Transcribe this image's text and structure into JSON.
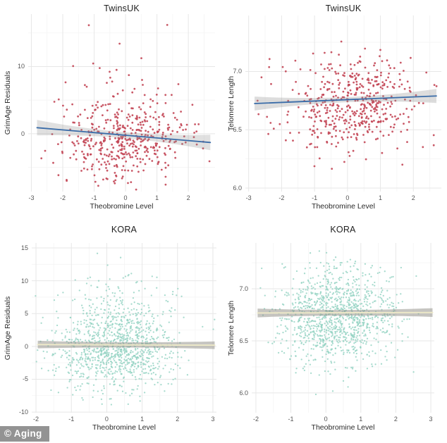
{
  "figure": {
    "background": "#ffffff",
    "grid_major": "#e7e7e7",
    "grid_minor": "#f4f4f4",
    "tick_text_color": "#555555",
    "watermark": {
      "label": "© Aging",
      "bg": "#808080",
      "fg": "#ffffff"
    }
  },
  "chart_data": [
    {
      "id": "twinsuk-grimage",
      "type": "scatter",
      "title": "TwinsUK",
      "xlabel": "Theobromine Level",
      "ylabel": "GrimAge Residuals",
      "xlim": [
        -3.1,
        2.85
      ],
      "ylim": [
        -8.6,
        17.8
      ],
      "xticks": [
        [
          -3,
          "-3"
        ],
        [
          -2,
          "-2"
        ],
        [
          -1,
          "-1"
        ],
        [
          0,
          "0"
        ],
        [
          1,
          "1"
        ],
        [
          2,
          "2"
        ]
      ],
      "yticks": [
        [
          0,
          "0"
        ],
        [
          10,
          "10"
        ]
      ],
      "grid": true,
      "points": {
        "n": 470,
        "seed": 7,
        "color": "#c14252",
        "radius": 1.4,
        "opacity": 0.88,
        "x_mean": 0.0,
        "x_sd": 1.02,
        "x_min": -2.92,
        "x_max": 2.72,
        "y_mean": -1.0,
        "y_sd": 2.9,
        "y_min": -8.3,
        "y_max": 17.4,
        "outlier_frac": 0.13,
        "outlier_mean": 6.0,
        "outlier_sd": 4.2
      },
      "regression": {
        "x0": -2.82,
        "y0": 0.9,
        "x1": 2.7,
        "y1": -1.3,
        "line_color": "#3a6ca8",
        "line_width": 1.8,
        "band_color": "#8f8f8f",
        "band_opacity": 0.28,
        "band_mid": 0.45,
        "band_end": 1.15
      }
    },
    {
      "id": "twinsuk-telomere",
      "type": "scatter",
      "title": "TwinsUK",
      "xlabel": "Theobromine Level",
      "ylabel": "Telomere Length",
      "xlim": [
        -3.1,
        2.85
      ],
      "ylim": [
        5.97,
        7.48
      ],
      "xticks": [
        [
          -3,
          "-3"
        ],
        [
          -2,
          "-2"
        ],
        [
          -1,
          "-1"
        ],
        [
          0,
          "0"
        ],
        [
          1,
          "1"
        ],
        [
          2,
          "2"
        ]
      ],
      "yticks": [
        [
          6.0,
          "6.0"
        ],
        [
          6.5,
          "6.5"
        ],
        [
          7.0,
          "7.0"
        ]
      ],
      "grid": true,
      "points": {
        "n": 480,
        "seed": 13,
        "color": "#c14252",
        "radius": 1.4,
        "opacity": 0.88,
        "x_mean": 0.0,
        "x_sd": 1.02,
        "x_min": -2.92,
        "x_max": 2.72,
        "y_mean": 6.72,
        "y_sd": 0.2,
        "y_min": 5.99,
        "y_max": 7.43,
        "outlier_frac": 0,
        "outlier_mean": 0,
        "outlier_sd": 1
      },
      "regression": {
        "x0": -2.82,
        "y0": 6.725,
        "x1": 2.7,
        "y1": 6.79,
        "line_color": "#3a6ca8",
        "line_width": 1.8,
        "band_color": "#8f8f8f",
        "band_opacity": 0.3,
        "band_mid": 0.022,
        "band_end": 0.06
      }
    },
    {
      "id": "kora-grimage",
      "type": "scatter",
      "title": "KORA",
      "xlabel": "Theobromine Level",
      "ylabel": "GrimAge Residuals",
      "xlim": [
        -2.12,
        3.1
      ],
      "ylim": [
        -10.1,
        15.75
      ],
      "xticks": [
        [
          -2,
          "-2"
        ],
        [
          -1,
          "-1"
        ],
        [
          0,
          "0"
        ],
        [
          1,
          "1"
        ],
        [
          2,
          "2"
        ],
        [
          3,
          "3"
        ]
      ],
      "yticks": [
        [
          -10,
          "-10"
        ],
        [
          -5,
          "-5"
        ],
        [
          0,
          "0"
        ],
        [
          5,
          "5"
        ],
        [
          10,
          "10"
        ],
        [
          15,
          "15"
        ]
      ],
      "grid": true,
      "points": {
        "n": 1150,
        "seed": 21,
        "color": "#92d2c2",
        "radius": 1.15,
        "opacity": 0.8,
        "x_mean": 0.28,
        "x_sd": 0.85,
        "x_min": -2.05,
        "x_max": 3.05,
        "y_mean": -0.4,
        "y_sd": 3.1,
        "y_min": -8.9,
        "y_max": 15.3,
        "outlier_frac": 0.12,
        "outlier_mean": 6.5,
        "outlier_sd": 3.4
      },
      "regression": {
        "x0": -1.95,
        "y0": 0.28,
        "x1": 3.05,
        "y1": 0.18,
        "line_color": "#ece8c8",
        "line_width": 2,
        "band_color": "#8d8c84",
        "band_opacity": 0.5,
        "band_mid": 0.4,
        "band_end": 0.58
      }
    },
    {
      "id": "kora-telomere",
      "type": "scatter",
      "title": "KORA",
      "xlabel": "Theobromine Level",
      "ylabel": "Telomere Length",
      "xlim": [
        -2.12,
        3.1
      ],
      "ylim": [
        5.81,
        7.44
      ],
      "xticks": [
        [
          -2,
          "-2"
        ],
        [
          -1,
          "-1"
        ],
        [
          0,
          "0"
        ],
        [
          1,
          "1"
        ],
        [
          2,
          "2"
        ],
        [
          3,
          "3"
        ]
      ],
      "yticks": [
        [
          6.0,
          "6.0"
        ],
        [
          6.5,
          "6.5"
        ],
        [
          7.0,
          "7.0"
        ]
      ],
      "grid": true,
      "points": {
        "n": 1150,
        "seed": 42,
        "color": "#92d2c2",
        "radius": 1.15,
        "opacity": 0.8,
        "x_mean": 0.28,
        "x_sd": 0.85,
        "x_min": -2.05,
        "x_max": 3.05,
        "y_mean": 6.74,
        "y_sd": 0.23,
        "y_min": 5.85,
        "y_max": 7.38,
        "outlier_frac": 0,
        "outlier_mean": 0,
        "outlier_sd": 1
      },
      "regression": {
        "x0": -1.95,
        "y0": 6.768,
        "x1": 3.05,
        "y1": 6.772,
        "line_color": "#ece8c8",
        "line_width": 2,
        "band_color": "#8d8c84",
        "band_opacity": 0.5,
        "band_mid": 0.027,
        "band_end": 0.042
      }
    }
  ]
}
